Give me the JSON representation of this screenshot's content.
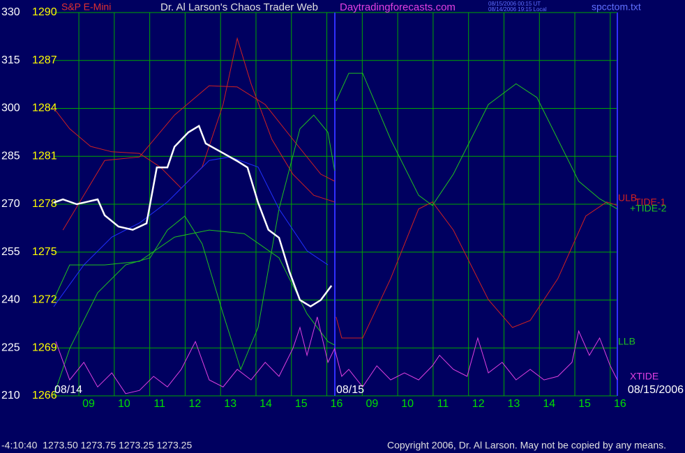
{
  "chart_data": {
    "type": "line",
    "title": "Dr. Al Larson's Chaos Trader Web",
    "website": "Daytradingforecasts.com",
    "timestamps": [
      "08/15/2006 00:15 UT",
      "08/14/2006 19:15 Local"
    ],
    "file": "spcctom.txt",
    "date_labels": [
      "08/14",
      "08/15",
      "08/15/2006"
    ],
    "status": "-4:10:40  1273.50 1273.75 1273.25 1273.25",
    "copyright": "Copyright 2006, Dr. Al Larson. May not be copied by any means.",
    "grid": true,
    "background": "#000060",
    "grid_color": "#00a800",
    "xlim": [
      -0.71,
      15.2
    ],
    "xticks": [
      {
        "value": 0,
        "label": "09"
      },
      {
        "value": 1,
        "label": "10"
      },
      {
        "value": 2,
        "label": "11"
      },
      {
        "value": 3,
        "label": "12"
      },
      {
        "value": 4,
        "label": "13"
      },
      {
        "value": 5,
        "label": "14"
      },
      {
        "value": 6,
        "label": "15"
      },
      {
        "value": 7,
        "label": "16"
      },
      {
        "value": 8,
        "label": "09"
      },
      {
        "value": 9,
        "label": "10"
      },
      {
        "value": 10,
        "label": "11"
      },
      {
        "value": 11,
        "label": "12"
      },
      {
        "value": 12,
        "label": "13"
      },
      {
        "value": 13,
        "label": "14"
      },
      {
        "value": 14,
        "label": "15"
      },
      {
        "value": 15,
        "label": "16"
      }
    ],
    "ylim": [
      210,
      330
    ],
    "yticks": [
      210,
      225,
      240,
      255,
      270,
      285,
      300,
      315,
      330
    ],
    "y2lim": [
      1266,
      1290
    ],
    "y2ticks": [
      1266,
      1269,
      1272,
      1275,
      1278,
      1281,
      1284,
      1287,
      1290
    ],
    "series": [
      {
        "name": "ULB",
        "color": "#d02020",
        "x": [
          -0.45,
          0.73,
          1.71,
          2.7,
          3.68,
          4.47,
          5.26,
          6.04,
          6.83,
          7.22
        ],
        "values": [
          261.9,
          283.7,
          284.8,
          297.9,
          307.1,
          306.7,
          301.2,
          290.3,
          279.4,
          277.2
        ]
      },
      {
        "name": "TIDE-1",
        "color": "#d02020",
        "x": [
          -0.71,
          -0.26,
          0.33,
          0.93,
          1.71,
          2.3,
          2.89,
          3.48,
          4.07,
          4.47,
          4.86,
          5.45,
          6.04,
          6.63,
          7.22,
          7.24,
          7.26,
          7.42,
          8.01,
          8.8,
          9.59,
          9.98,
          10.57,
          11.56,
          12.24,
          12.74,
          13.52,
          14.31,
          14.9,
          15.2
        ],
        "values": [
          300.1,
          293.6,
          288.1,
          286.4,
          285.9,
          281.6,
          275.0,
          281.6,
          301.2,
          321.9,
          307.7,
          290.3,
          279.4,
          272.8,
          270.7,
          null,
          234.7,
          228.1,
          228.1,
          246.7,
          268.5,
          270.7,
          261.9,
          240.1,
          231.4,
          233.6,
          246.7,
          266.3,
          270.7,
          269.6
        ]
      },
      {
        "name": "+TIDE-2",
        "color": "#20c020",
        "x": [
          -0.71,
          -0.26,
          0.53,
          1.32,
          2.01,
          2.5,
          2.99,
          3.48,
          4.07,
          4.57,
          5.06,
          5.65,
          6.24,
          6.63,
          7.03,
          7.22,
          7.24,
          7.26,
          7.62,
          8.01,
          8.8,
          9.59,
          9.98,
          10.57,
          11.56,
          12.34,
          12.93,
          13.52,
          14.11,
          14.7,
          15.2
        ],
        "values": [
          210,
          224.8,
          242.3,
          251.0,
          253.2,
          261.9,
          266.3,
          257.6,
          235.7,
          218.3,
          231.4,
          268.5,
          293.6,
          297.9,
          292.5,
          280.5,
          null,
          302.3,
          311.0,
          311.0,
          290.3,
          272.8,
          269.6,
          279.4,
          301.2,
          307.7,
          303.4,
          290.3,
          277.2,
          271.7,
          268.5
        ]
      },
      {
        "name": "LLB",
        "color": "#20c020",
        "x": [
          -0.71,
          -0.26,
          0.73,
          1.71,
          2.7,
          3.68,
          4.67,
          5.65,
          6.44,
          7.03,
          7.22
        ],
        "values": [
          240.1,
          251.0,
          251.0,
          252.1,
          259.7,
          261.9,
          260.8,
          253.2,
          235.7,
          227.0,
          225.9
        ]
      },
      {
        "name": "XTIDE",
        "color": "#e040e0",
        "x": [
          -0.65,
          -0.26,
          0.14,
          0.53,
          0.93,
          1.32,
          1.71,
          2.11,
          2.5,
          2.89,
          3.29,
          3.68,
          4.07,
          4.47,
          4.86,
          5.26,
          5.65,
          6.04,
          6.24,
          6.44,
          6.73,
          7.03,
          7.22,
          7.42,
          7.62,
          8.01,
          8.41,
          8.8,
          9.19,
          9.59,
          9.98,
          10.18,
          10.57,
          10.96,
          11.26,
          11.56,
          11.95,
          12.34,
          12.74,
          13.13,
          13.52,
          13.92,
          14.11,
          14.41,
          14.7,
          15.0,
          15.2
        ],
        "values": [
          227.0,
          215.0,
          220.5,
          212.8,
          217.2,
          210.7,
          211.7,
          216.1,
          212.8,
          218.3,
          227.0,
          215.0,
          212.8,
          218.3,
          215.0,
          220.5,
          216.1,
          224.8,
          231.4,
          222.7,
          234.7,
          220.5,
          224.8,
          216.1,
          218.3,
          212.8,
          219.4,
          215.0,
          217.2,
          215.0,
          219.4,
          222.7,
          218.3,
          216.1,
          228.1,
          217.2,
          220.5,
          215.0,
          218.3,
          215.0,
          216.1,
          220.5,
          230.3,
          222.7,
          228.1,
          219.4,
          215.0
        ]
      },
      {
        "color": "#2030ff",
        "x": [
          -0.71,
          0.14,
          0.93,
          1.71,
          2.5,
          3.29,
          3.68,
          4.27,
          5.06,
          5.65,
          6.44,
          7.03
        ],
        "values": [
          237.9,
          251.0,
          259.7,
          264.1,
          270.7,
          279.4,
          283.7,
          284.8,
          281.6,
          268.5,
          255.4,
          251.0
        ]
      },
      {
        "name": "S&P E-Mini",
        "color": "#ffffff",
        "axis": "y2",
        "x": [
          -0.71,
          -0.45,
          -0.06,
          0.53,
          0.73,
          1.12,
          1.52,
          1.91,
          2.2,
          2.5,
          2.7,
          3.09,
          3.39,
          3.58,
          4.07,
          4.47,
          4.76,
          5.06,
          5.35,
          5.65,
          5.94,
          6.24,
          6.54,
          6.83,
          7.13
        ],
        "values": [
          1278.1,
          1278.3,
          1278.0,
          1278.3,
          1277.3,
          1276.6,
          1276.4,
          1276.8,
          1280.3,
          1280.3,
          1281.6,
          1282.5,
          1282.9,
          1281.8,
          1281.2,
          1280.7,
          1280.3,
          1278.1,
          1276.4,
          1275.9,
          1273.8,
          1272.0,
          1271.6,
          1272.0,
          1272.9
        ]
      }
    ]
  }
}
